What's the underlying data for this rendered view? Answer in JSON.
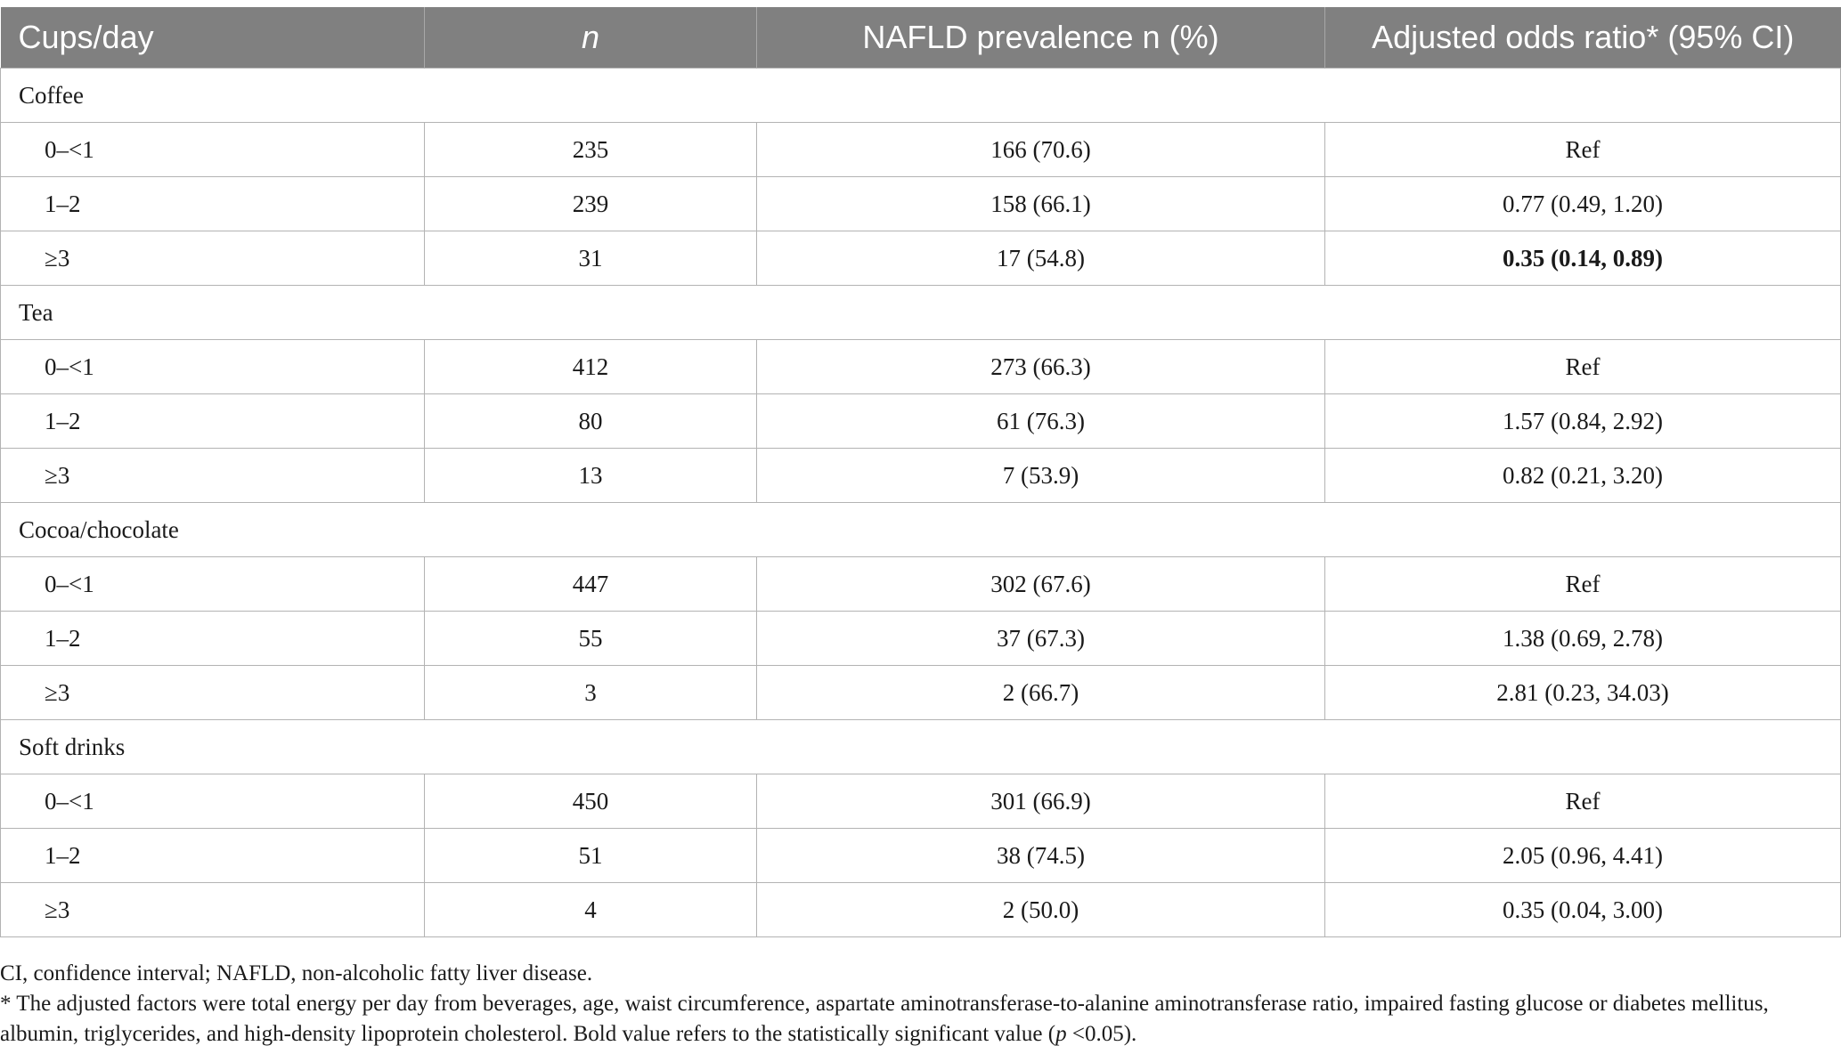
{
  "table": {
    "headers": [
      "Cups/day",
      "n",
      "NAFLD prevalence n (%)",
      "Adjusted odds ratio* (95% CI)"
    ],
    "groups": [
      {
        "name": "Coffee",
        "rows": [
          {
            "cups": "0–<1",
            "n": "235",
            "prevalence": "166 (70.6)",
            "odds_ratio": "Ref",
            "bold": false
          },
          {
            "cups": "1–2",
            "n": "239",
            "prevalence": "158 (66.1)",
            "odds_ratio": "0.77 (0.49, 1.20)",
            "bold": false
          },
          {
            "cups": "≥3",
            "n": "31",
            "prevalence": "17 (54.8)",
            "odds_ratio": "0.35 (0.14, 0.89)",
            "bold": true
          }
        ]
      },
      {
        "name": "Tea",
        "rows": [
          {
            "cups": "0–<1",
            "n": "412",
            "prevalence": "273 (66.3)",
            "odds_ratio": "Ref",
            "bold": false
          },
          {
            "cups": "1–2",
            "n": "80",
            "prevalence": "61 (76.3)",
            "odds_ratio": "1.57 (0.84, 2.92)",
            "bold": false
          },
          {
            "cups": "≥3",
            "n": "13",
            "prevalence": "7 (53.9)",
            "odds_ratio": "0.82 (0.21, 3.20)",
            "bold": false
          }
        ]
      },
      {
        "name": "Cocoa/chocolate",
        "rows": [
          {
            "cups": "0–<1",
            "n": "447",
            "prevalence": "302 (67.6)",
            "odds_ratio": "Ref",
            "bold": false
          },
          {
            "cups": "1–2",
            "n": "55",
            "prevalence": "37 (67.3)",
            "odds_ratio": "1.38 (0.69, 2.78)",
            "bold": false
          },
          {
            "cups": "≥3",
            "n": "3",
            "prevalence": "2 (66.7)",
            "odds_ratio": "2.81 (0.23, 34.03)",
            "bold": false
          }
        ]
      },
      {
        "name": "Soft drinks",
        "rows": [
          {
            "cups": "0–<1",
            "n": "450",
            "prevalence": "301 (66.9)",
            "odds_ratio": "Ref",
            "bold": false
          },
          {
            "cups": "1–2",
            "n": "51",
            "prevalence": "38 (74.5)",
            "odds_ratio": "2.05 (0.96, 4.41)",
            "bold": false
          },
          {
            "cups": "≥3",
            "n": "4",
            "prevalence": "2 (50.0)",
            "odds_ratio": "0.35 (0.04, 3.00)",
            "bold": false
          }
        ]
      }
    ]
  },
  "footnotes": {
    "abbreviations": "CI, confidence interval; NAFLD, non-alcoholic fatty liver disease.",
    "adjustment_prefix": "* The adjusted factors were total energy per day from beverages, age, waist circumference, aspartate aminotransferase-to-alanine aminotransferase ratio, impaired fasting glucose or diabetes mellitus, albumin, triglycerides, and high-density lipoprotein cholesterol. Bold value refers to the statistically significant value (",
    "adjustment_p": "p",
    "adjustment_suffix": " <0.05)."
  },
  "colors": {
    "header_bg": "#808080",
    "header_text": "#ffffff",
    "grid": "#b3b3b3"
  }
}
